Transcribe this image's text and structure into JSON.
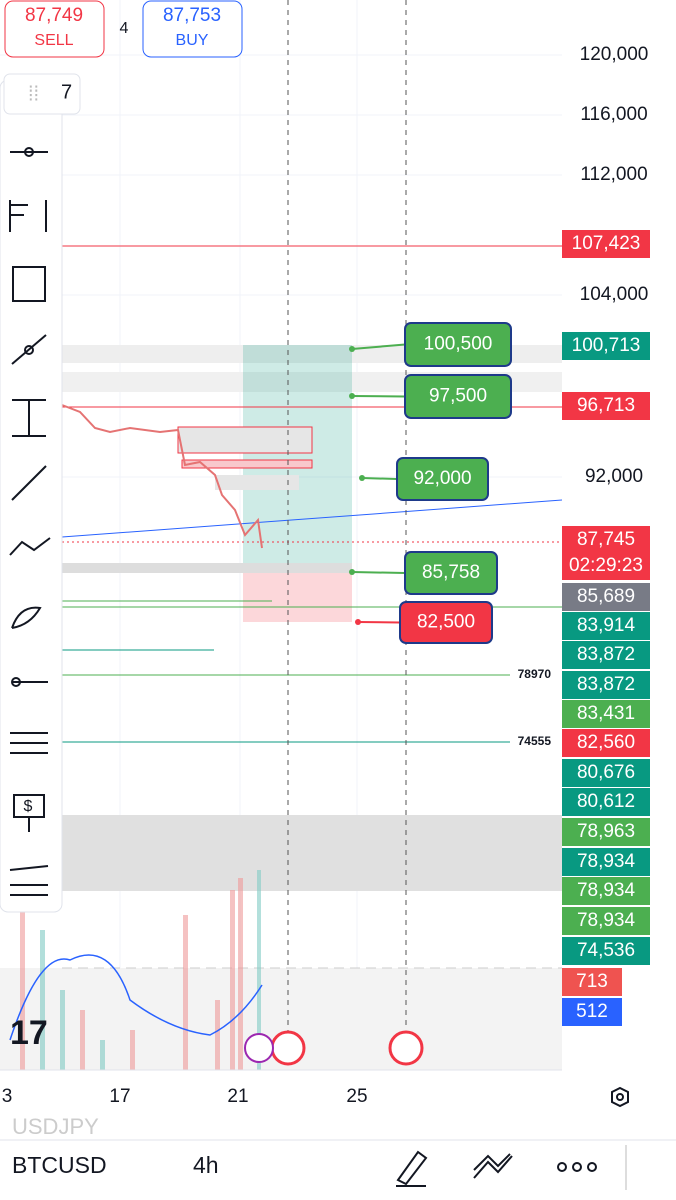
{
  "trade_buttons": {
    "sell": {
      "price": "87,749",
      "label": "SELL"
    },
    "spread": "4",
    "buy": {
      "price": "87,753",
      "label": "BUY"
    }
  },
  "toolbar_badge": "7",
  "price_scale": [
    "120,000",
    "116,000",
    "112,000",
    "104,000",
    "92,000"
  ],
  "price_tags": [
    {
      "text": "107,423",
      "color": "#f23645"
    },
    {
      "text": "100,713",
      "color": "#089981"
    },
    {
      "text": "96,713",
      "color": "#f23645"
    },
    {
      "text": "87,745",
      "countdown": "02:29:23",
      "color": "#f23645"
    },
    {
      "text": "85,689",
      "color": "#787b86"
    },
    {
      "text": "83,914",
      "color": "#089981"
    },
    {
      "text": "83,872",
      "color": "#089981"
    },
    {
      "text": "83,872",
      "color": "#089981"
    },
    {
      "text": "83,431",
      "color": "#4caf50"
    },
    {
      "text": "82,560",
      "color": "#f23645"
    },
    {
      "text": "80,676",
      "color": "#089981"
    },
    {
      "text": "80,612",
      "color": "#089981"
    },
    {
      "text": "78,963",
      "color": "#4caf50"
    },
    {
      "text": "78,934",
      "color": "#089981"
    },
    {
      "text": "78,934",
      "color": "#4caf50"
    },
    {
      "text": "78,934",
      "color": "#4caf50"
    },
    {
      "text": "74,536",
      "color": "#089981"
    },
    {
      "text": "713",
      "color": "#ef5350"
    },
    {
      "text": "512",
      "color": "#2962ff"
    }
  ],
  "order_labels": [
    {
      "text": "100,500",
      "color": "#4caf50"
    },
    {
      "text": "97,500",
      "color": "#4caf50"
    },
    {
      "text": "92,000",
      "color": "#4caf50"
    },
    {
      "text": "85,758",
      "color": "#4caf50"
    },
    {
      "text": "82,500",
      "color": "#f23645"
    }
  ],
  "line_labels": [
    "78970",
    "74555"
  ],
  "time_scale": [
    "3",
    "17",
    "21",
    "25"
  ],
  "watermark": "USDJPY",
  "bottom_bar": {
    "symbol": "BTCUSD",
    "interval": "4h"
  }
}
